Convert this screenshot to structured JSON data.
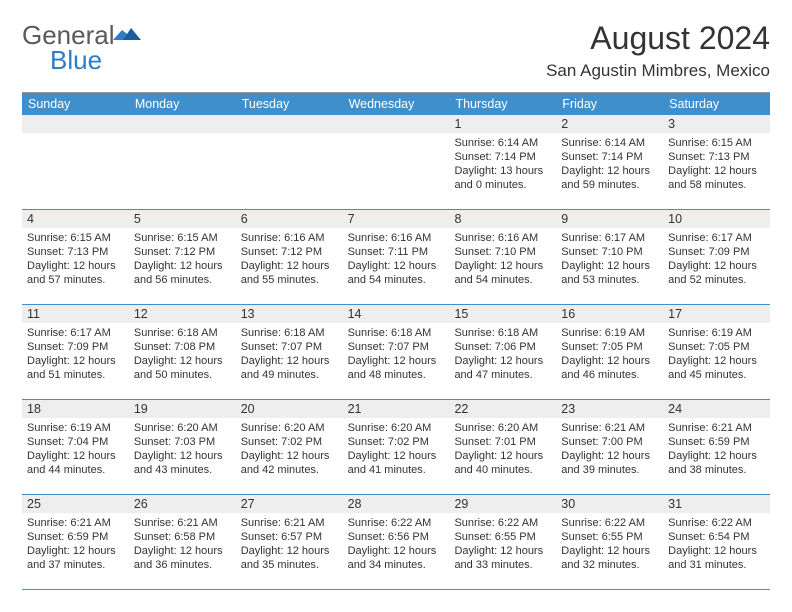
{
  "brand": {
    "name_gray": "General",
    "name_blue": "Blue"
  },
  "title": "August 2024",
  "location": "San Agustin Mimbres, Mexico",
  "colors": {
    "header_blue": "#3f8fcd",
    "row_gray": "#eeeeee",
    "rule": "#3f8fcd",
    "text": "#333333",
    "logo_gray": "#5a5a5a",
    "logo_blue": "#2f7dc4"
  },
  "dow": [
    "Sunday",
    "Monday",
    "Tuesday",
    "Wednesday",
    "Thursday",
    "Friday",
    "Saturday"
  ],
  "weeks": [
    [
      {
        "n": "",
        "sr": "",
        "ss": "",
        "dl": ""
      },
      {
        "n": "",
        "sr": "",
        "ss": "",
        "dl": ""
      },
      {
        "n": "",
        "sr": "",
        "ss": "",
        "dl": ""
      },
      {
        "n": "",
        "sr": "",
        "ss": "",
        "dl": ""
      },
      {
        "n": "1",
        "sr": "6:14 AM",
        "ss": "7:14 PM",
        "dl": "13 hours and 0 minutes."
      },
      {
        "n": "2",
        "sr": "6:14 AM",
        "ss": "7:14 PM",
        "dl": "12 hours and 59 minutes."
      },
      {
        "n": "3",
        "sr": "6:15 AM",
        "ss": "7:13 PM",
        "dl": "12 hours and 58 minutes."
      }
    ],
    [
      {
        "n": "4",
        "sr": "6:15 AM",
        "ss": "7:13 PM",
        "dl": "12 hours and 57 minutes."
      },
      {
        "n": "5",
        "sr": "6:15 AM",
        "ss": "7:12 PM",
        "dl": "12 hours and 56 minutes."
      },
      {
        "n": "6",
        "sr": "6:16 AM",
        "ss": "7:12 PM",
        "dl": "12 hours and 55 minutes."
      },
      {
        "n": "7",
        "sr": "6:16 AM",
        "ss": "7:11 PM",
        "dl": "12 hours and 54 minutes."
      },
      {
        "n": "8",
        "sr": "6:16 AM",
        "ss": "7:10 PM",
        "dl": "12 hours and 54 minutes."
      },
      {
        "n": "9",
        "sr": "6:17 AM",
        "ss": "7:10 PM",
        "dl": "12 hours and 53 minutes."
      },
      {
        "n": "10",
        "sr": "6:17 AM",
        "ss": "7:09 PM",
        "dl": "12 hours and 52 minutes."
      }
    ],
    [
      {
        "n": "11",
        "sr": "6:17 AM",
        "ss": "7:09 PM",
        "dl": "12 hours and 51 minutes."
      },
      {
        "n": "12",
        "sr": "6:18 AM",
        "ss": "7:08 PM",
        "dl": "12 hours and 50 minutes."
      },
      {
        "n": "13",
        "sr": "6:18 AM",
        "ss": "7:07 PM",
        "dl": "12 hours and 49 minutes."
      },
      {
        "n": "14",
        "sr": "6:18 AM",
        "ss": "7:07 PM",
        "dl": "12 hours and 48 minutes."
      },
      {
        "n": "15",
        "sr": "6:18 AM",
        "ss": "7:06 PM",
        "dl": "12 hours and 47 minutes."
      },
      {
        "n": "16",
        "sr": "6:19 AM",
        "ss": "7:05 PM",
        "dl": "12 hours and 46 minutes."
      },
      {
        "n": "17",
        "sr": "6:19 AM",
        "ss": "7:05 PM",
        "dl": "12 hours and 45 minutes."
      }
    ],
    [
      {
        "n": "18",
        "sr": "6:19 AM",
        "ss": "7:04 PM",
        "dl": "12 hours and 44 minutes."
      },
      {
        "n": "19",
        "sr": "6:20 AM",
        "ss": "7:03 PM",
        "dl": "12 hours and 43 minutes."
      },
      {
        "n": "20",
        "sr": "6:20 AM",
        "ss": "7:02 PM",
        "dl": "12 hours and 42 minutes."
      },
      {
        "n": "21",
        "sr": "6:20 AM",
        "ss": "7:02 PM",
        "dl": "12 hours and 41 minutes."
      },
      {
        "n": "22",
        "sr": "6:20 AM",
        "ss": "7:01 PM",
        "dl": "12 hours and 40 minutes."
      },
      {
        "n": "23",
        "sr": "6:21 AM",
        "ss": "7:00 PM",
        "dl": "12 hours and 39 minutes."
      },
      {
        "n": "24",
        "sr": "6:21 AM",
        "ss": "6:59 PM",
        "dl": "12 hours and 38 minutes."
      }
    ],
    [
      {
        "n": "25",
        "sr": "6:21 AM",
        "ss": "6:59 PM",
        "dl": "12 hours and 37 minutes."
      },
      {
        "n": "26",
        "sr": "6:21 AM",
        "ss": "6:58 PM",
        "dl": "12 hours and 36 minutes."
      },
      {
        "n": "27",
        "sr": "6:21 AM",
        "ss": "6:57 PM",
        "dl": "12 hours and 35 minutes."
      },
      {
        "n": "28",
        "sr": "6:22 AM",
        "ss": "6:56 PM",
        "dl": "12 hours and 34 minutes."
      },
      {
        "n": "29",
        "sr": "6:22 AM",
        "ss": "6:55 PM",
        "dl": "12 hours and 33 minutes."
      },
      {
        "n": "30",
        "sr": "6:22 AM",
        "ss": "6:55 PM",
        "dl": "12 hours and 32 minutes."
      },
      {
        "n": "31",
        "sr": "6:22 AM",
        "ss": "6:54 PM",
        "dl": "12 hours and 31 minutes."
      }
    ]
  ],
  "labels": {
    "sunrise": "Sunrise: ",
    "sunset": "Sunset: ",
    "daylight": "Daylight: "
  }
}
